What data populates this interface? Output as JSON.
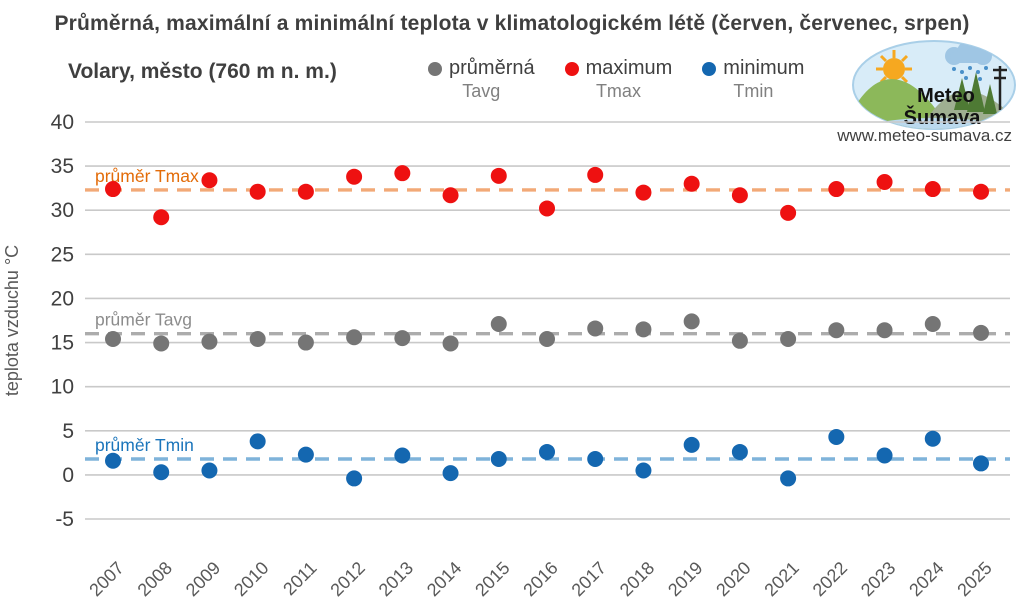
{
  "title": "Průměrná, maximální a minimální teplota v klimatologickém létě (červen, červenec, srpen)",
  "subtitle": "Volary, město (760 m n. m.)",
  "website": "www.meteo-sumava.cz",
  "logo": {
    "line1": "Meteo",
    "line2": "Šumava"
  },
  "legend": {
    "items": [
      {
        "label": "průměrná",
        "sublabel": "Tavg",
        "color": "#757575"
      },
      {
        "label": "maximum",
        "sublabel": "Tmax",
        "color": "#EE1111"
      },
      {
        "label": "minimum",
        "sublabel": "Tmin",
        "color": "#1467B0"
      }
    ]
  },
  "chart_data": {
    "type": "scatter",
    "title": "Průměrná, maximální a minimální teplota v klimatologickém létě (červen, červenec, srpen)",
    "subtitle": "Volary, město (760 m n. m.)",
    "xlabel": "",
    "ylabel": "teplota vzduchu °C",
    "ylim": [
      -5,
      40
    ],
    "ytick_step": 5,
    "grid": true,
    "legend_position": "top",
    "x": [
      2007,
      2008,
      2009,
      2010,
      2011,
      2012,
      2013,
      2014,
      2015,
      2016,
      2017,
      2018,
      2019,
      2020,
      2021,
      2022,
      2023,
      2024,
      2025
    ],
    "series": [
      {
        "key": "tmax",
        "name": "maximum Tmax",
        "color": "#EE1111",
        "values": [
          32.4,
          29.2,
          33.4,
          32.1,
          32.1,
          33.8,
          34.2,
          31.7,
          33.9,
          30.2,
          34.0,
          32.0,
          33.0,
          31.7,
          29.7,
          32.4,
          33.2,
          32.4,
          32.1
        ],
        "mean": 32.3,
        "mean_label": "průměr Tmax",
        "mean_label_color": "#E36C09",
        "mean_line_color": "#F2A977"
      },
      {
        "key": "tavg",
        "name": "průměrná Tavg",
        "color": "#757575",
        "values": [
          15.4,
          14.9,
          15.1,
          15.4,
          15.0,
          15.6,
          15.5,
          14.9,
          17.1,
          15.4,
          16.6,
          16.5,
          17.4,
          15.2,
          15.4,
          16.4,
          16.4,
          17.1,
          16.1
        ],
        "mean": 16.0,
        "mean_label": "průměr Tavg",
        "mean_label_color": "#8C8C8C",
        "mean_line_color": "#ACACAC"
      },
      {
        "key": "tmin",
        "name": "minimum Tmin",
        "color": "#1467B0",
        "values": [
          1.6,
          0.3,
          0.5,
          3.8,
          2.3,
          -0.4,
          2.2,
          0.2,
          1.8,
          2.6,
          1.8,
          0.5,
          3.4,
          2.6,
          -0.4,
          4.3,
          2.2,
          4.1,
          1.3
        ],
        "mean": 1.8,
        "mean_label": "průměr Tmin",
        "mean_label_color": "#1B75BB",
        "mean_line_color": "#7FB3DA"
      }
    ]
  },
  "style": {
    "gridline_color": "#C9C9C9",
    "tick_label_color": "#404040",
    "year_label_color": "#595959",
    "axis_title_color": "#595959"
  }
}
